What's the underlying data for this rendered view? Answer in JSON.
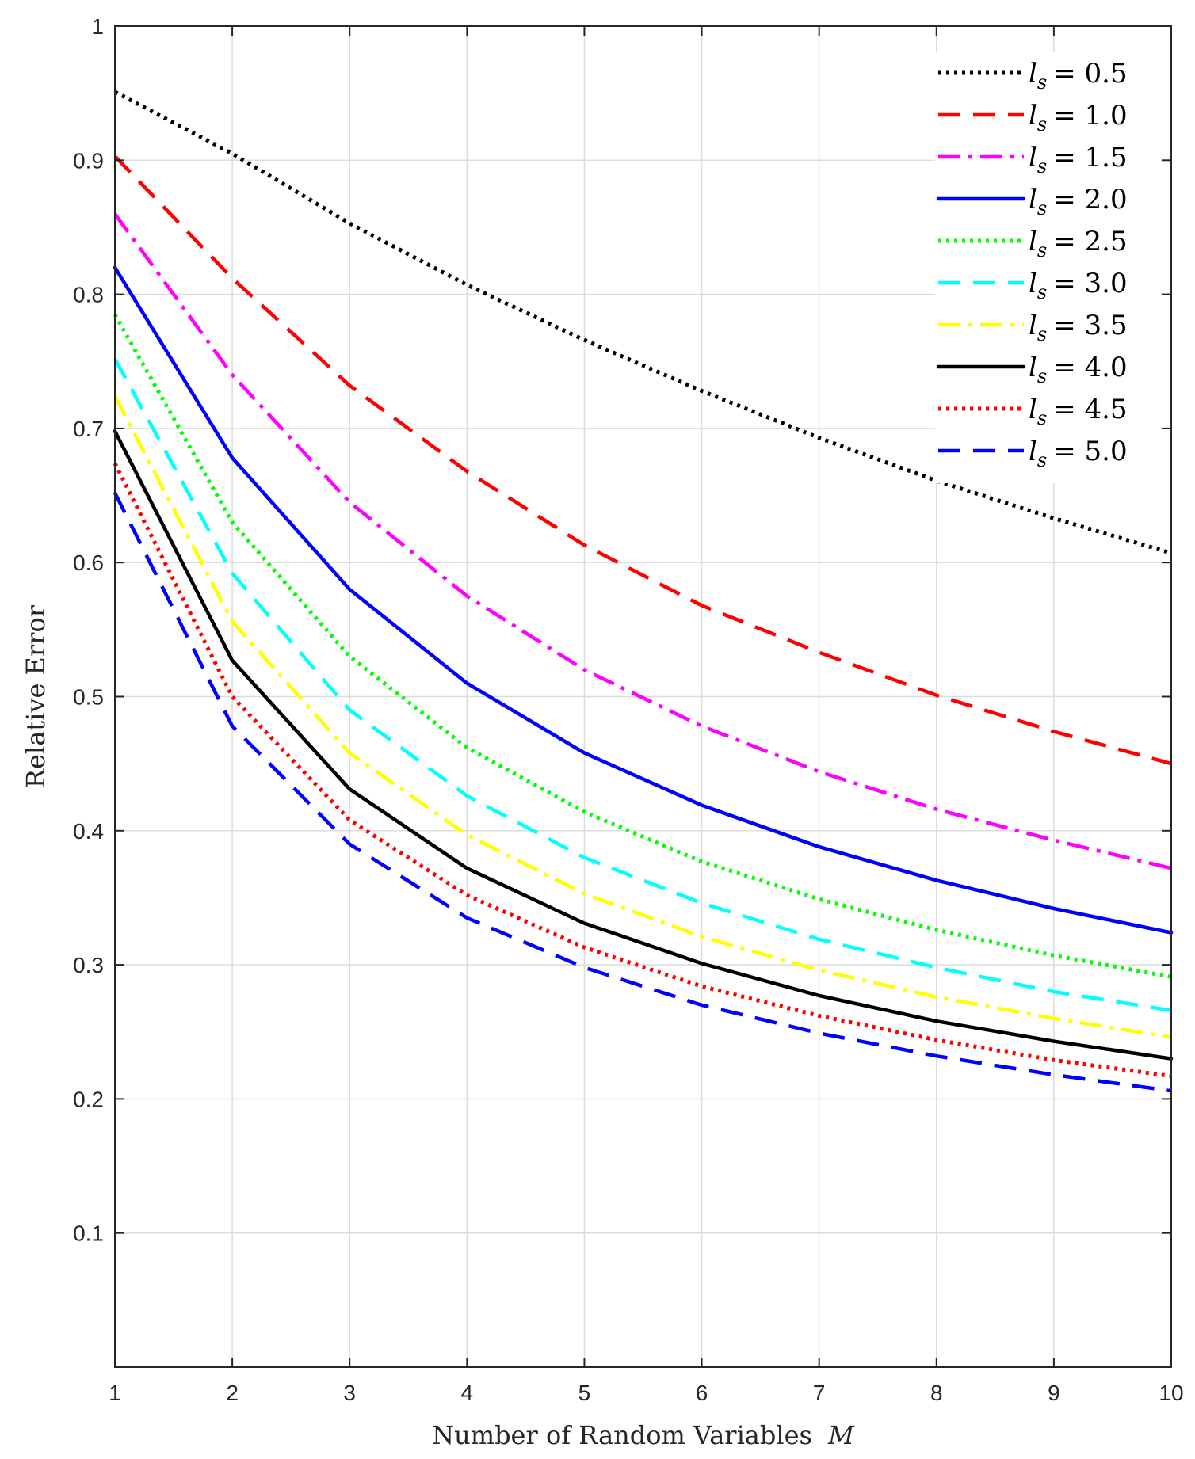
{
  "chart_data": {
    "type": "line",
    "xlabel": "Number of Random Variables M",
    "ylabel": "Relative Error",
    "xlim": [
      1,
      10
    ],
    "ylim": [
      0,
      1
    ],
    "x": [
      1,
      2,
      3,
      4,
      5,
      6,
      7,
      8,
      9,
      10
    ],
    "xticks": [
      "1",
      "2",
      "3",
      "4",
      "5",
      "6",
      "7",
      "8",
      "9",
      "10"
    ],
    "yticks": [
      {
        "value": 0.1,
        "label": "0.1"
      },
      {
        "value": 0.2,
        "label": "0.2"
      },
      {
        "value": 0.3,
        "label": "0.3"
      },
      {
        "value": 0.4,
        "label": "0.4"
      },
      {
        "value": 0.5,
        "label": "0.5"
      },
      {
        "value": 0.6,
        "label": "0.6"
      },
      {
        "value": 0.7,
        "label": "0.7"
      },
      {
        "value": 0.8,
        "label": "0.8"
      },
      {
        "value": 0.9,
        "label": "0.9"
      },
      {
        "value": 1.0,
        "label": "1"
      }
    ],
    "grid": true,
    "legend_position": "top-right",
    "series": [
      {
        "name": "l_s = 0.5",
        "label": "= 0.5",
        "color": "#000000",
        "style": "dotted",
        "values": [
          0.951,
          0.905,
          0.853,
          0.807,
          0.766,
          0.728,
          0.693,
          0.661,
          0.633,
          0.607
        ]
      },
      {
        "name": "l_s = 1.0",
        "label": "= 1.0",
        "color": "#ff0000",
        "style": "dashed",
        "values": [
          0.903,
          0.812,
          0.732,
          0.668,
          0.613,
          0.568,
          0.533,
          0.501,
          0.474,
          0.45
        ]
      },
      {
        "name": "l_s = 1.5",
        "label": "= 1.5",
        "color": "#ff00ff",
        "style": "dashdot",
        "values": [
          0.86,
          0.74,
          0.645,
          0.575,
          0.52,
          0.478,
          0.444,
          0.416,
          0.393,
          0.372
        ]
      },
      {
        "name": "l_s = 2.0",
        "label": "= 2.0",
        "color": "#0000ff",
        "style": "solid",
        "values": [
          0.82,
          0.678,
          0.58,
          0.51,
          0.458,
          0.419,
          0.388,
          0.363,
          0.342,
          0.324
        ]
      },
      {
        "name": "l_s = 2.5",
        "label": "= 2.5",
        "color": "#00ff00",
        "style": "dotted",
        "values": [
          0.785,
          0.63,
          0.53,
          0.462,
          0.414,
          0.377,
          0.349,
          0.326,
          0.307,
          0.291
        ]
      },
      {
        "name": "l_s = 3.0",
        "label": "= 3.0",
        "color": "#00ffff",
        "style": "dashed",
        "values": [
          0.752,
          0.592,
          0.49,
          0.426,
          0.38,
          0.346,
          0.319,
          0.298,
          0.28,
          0.266
        ]
      },
      {
        "name": "l_s = 3.5",
        "label": "= 3.5",
        "color": "#ffff00",
        "style": "dashdot",
        "values": [
          0.724,
          0.556,
          0.458,
          0.397,
          0.353,
          0.321,
          0.296,
          0.276,
          0.26,
          0.246
        ]
      },
      {
        "name": "l_s = 4.0",
        "label": "= 4.0",
        "color": "#000000",
        "style": "solid",
        "values": [
          0.698,
          0.527,
          0.431,
          0.372,
          0.331,
          0.301,
          0.277,
          0.258,
          0.243,
          0.23
        ]
      },
      {
        "name": "l_s = 4.5",
        "label": "= 4.5",
        "color": "#ff0000",
        "style": "dotted",
        "values": [
          0.674,
          0.5,
          0.408,
          0.352,
          0.313,
          0.284,
          0.262,
          0.244,
          0.229,
          0.217
        ]
      },
      {
        "name": "l_s = 5.0",
        "label": "= 5.0",
        "color": "#0000ff",
        "style": "dashed",
        "values": [
          0.652,
          0.478,
          0.39,
          0.335,
          0.298,
          0.27,
          0.249,
          0.232,
          0.218,
          0.206
        ]
      }
    ]
  }
}
